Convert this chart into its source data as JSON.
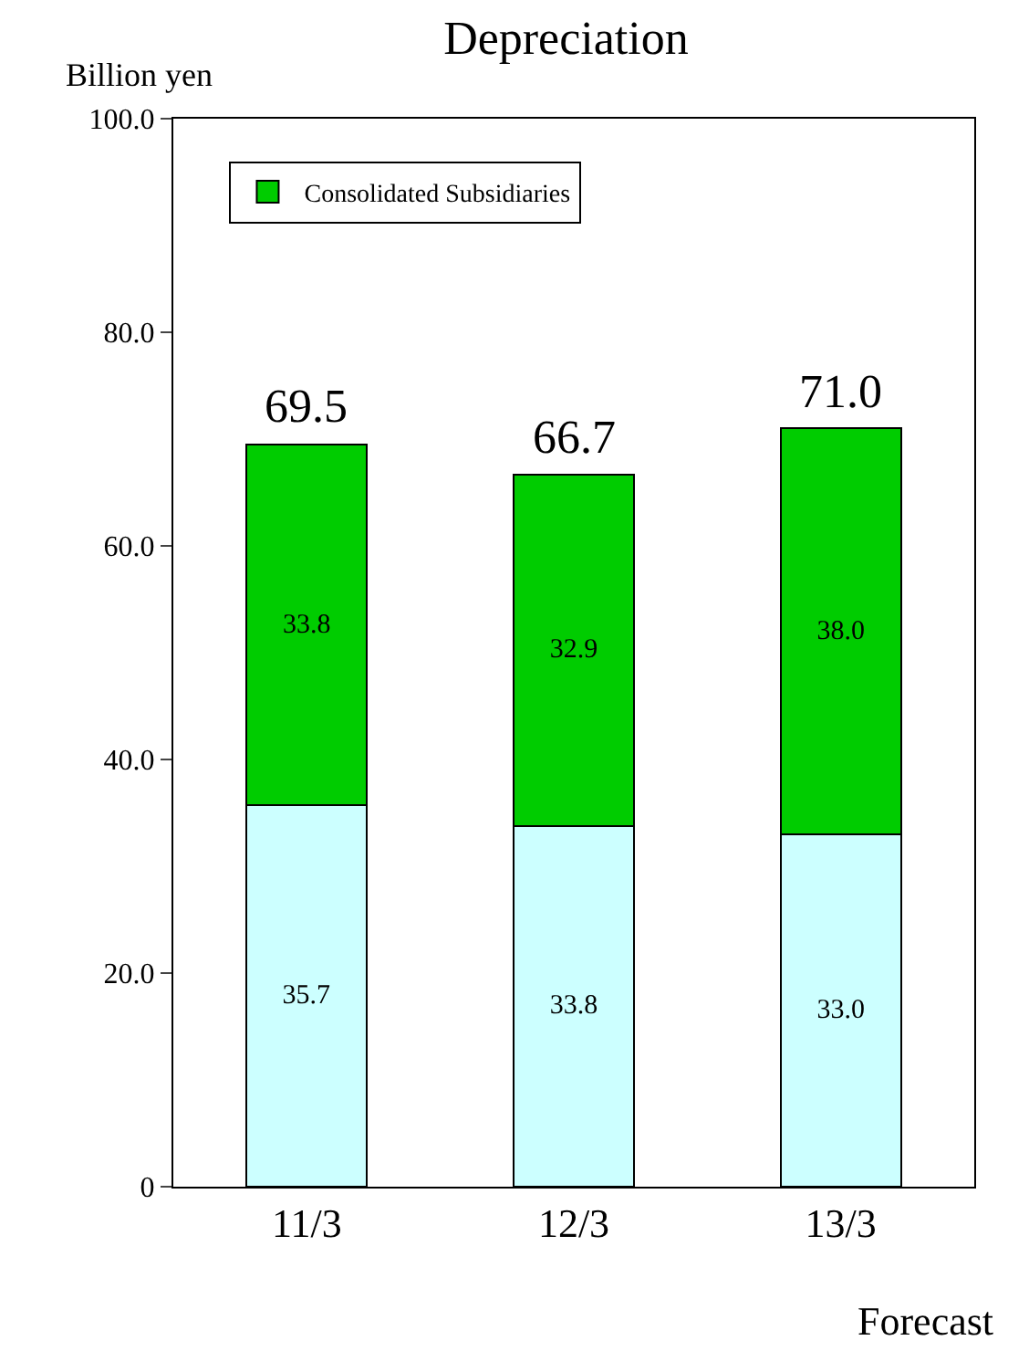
{
  "chart_data": {
    "type": "bar",
    "title": "Depreciation",
    "ylabel": "Billion yen",
    "categories": [
      "11/3",
      "12/3",
      "13/3"
    ],
    "stacked": true,
    "series": [
      {
        "color": "#ccffff",
        "values": [
          35.7,
          33.8,
          33.0
        ],
        "value_labels": [
          "35.7",
          "33.8",
          "33.0"
        ]
      },
      {
        "name": "Consolidated Subsidiaries",
        "color": "#00cc00",
        "values": [
          33.8,
          32.9,
          38.0
        ],
        "value_labels": [
          "33.8",
          "32.9",
          "38.0"
        ]
      }
    ],
    "totals": [
      "69.5",
      "66.7",
      "71.0"
    ],
    "ylim": [
      0,
      100
    ],
    "yticks": [
      {
        "value": 0,
        "label": "0"
      },
      {
        "value": 20,
        "label": "20.0"
      },
      {
        "value": 40,
        "label": "40.0"
      },
      {
        "value": 60,
        "label": "60.0"
      },
      {
        "value": 80,
        "label": "80.0"
      },
      {
        "value": 100,
        "label": "100.0"
      }
    ],
    "grid": false,
    "legend": "top left",
    "annotations": [
      "Forecast"
    ]
  }
}
